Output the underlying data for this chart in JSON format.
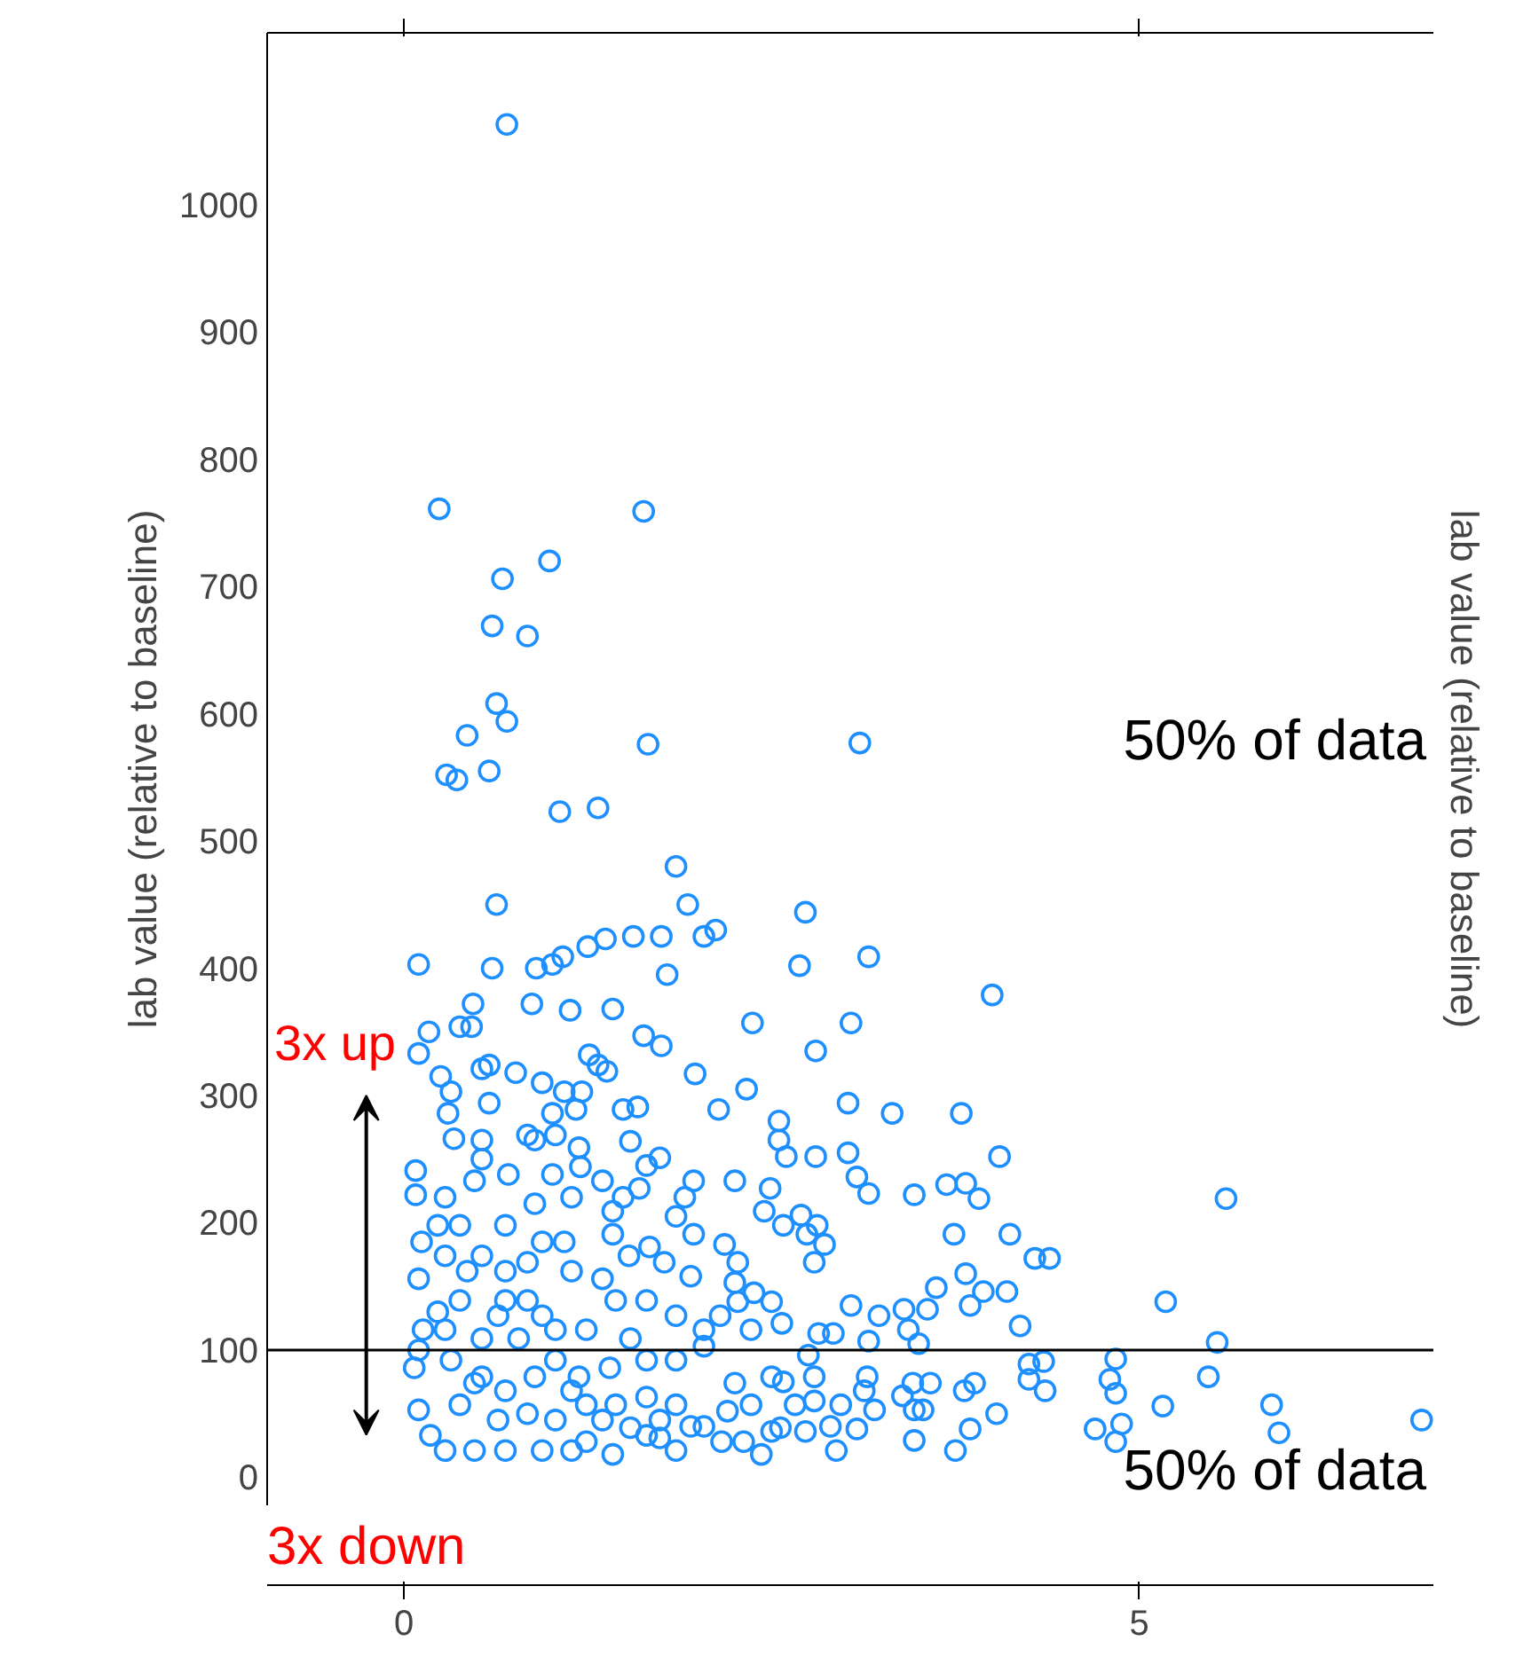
{
  "chart_data": {
    "type": "scatter",
    "ylabel": "lab value (relative to baseline)",
    "y2label": "lab value (relative to baseline)",
    "xlim": [
      -0.93,
      7.0
    ],
    "xticks": [
      0,
      5
    ],
    "ylim": [
      -22,
      1135
    ],
    "yticks": [
      0,
      100,
      200,
      300,
      400,
      500,
      600,
      700,
      800,
      900,
      1000
    ],
    "tick_labels": "xy",
    "grid": false,
    "marker": "circle",
    "ref_lines": [
      {
        "axis": "y",
        "value": 100,
        "color": "#000000"
      }
    ],
    "annotations": [
      "50% of data",
      "50% of data",
      "3x up",
      "3x down"
    ],
    "series": [
      {
        "color": "#1e8fff",
        "x": [
          0.7,
          0.24,
          1.63,
          0.99,
          0.67,
          0.6,
          0.84,
          0.63,
          0.7,
          0.43,
          1.66,
          3.1,
          0.29,
          0.36,
          0.58,
          1.06,
          1.32,
          1.85,
          1.93,
          0.63,
          2.73,
          2.04,
          2.12,
          0.1,
          0.6,
          0.9,
          1.01,
          1.08,
          1.25,
          1.37,
          1.56,
          1.75,
          1.79,
          2.69,
          3.16,
          4.0,
          0.47,
          0.87,
          1.13,
          1.42,
          1.63,
          1.75,
          2.37,
          3.04,
          2.8,
          1.98,
          2.33,
          2.14,
          2.55,
          2.55,
          2.6,
          3.02,
          3.32,
          3.79,
          2.8,
          3.02,
          3.08,
          3.16,
          4.05,
          3.47,
          3.69,
          3.82,
          3.91,
          5.59,
          3.74,
          4.12,
          4.29,
          4.39,
          5.18,
          5.53,
          4.84,
          5.47,
          5.9,
          5.95,
          6.92,
          5.16,
          4.7,
          4.88,
          4.84,
          4.8,
          4.84,
          4.25,
          4.35,
          4.36,
          4.25,
          4.19,
          4.1,
          3.94,
          3.82,
          3.85,
          3.62,
          3.56,
          3.4,
          3.43,
          3.5,
          3.23,
          3.04,
          3.16,
          4.03,
          3.85,
          3.75,
          3.88,
          3.81,
          3.47,
          3.47,
          3.53,
          3.58,
          3.46,
          3.39,
          3.2,
          3.15,
          3.13,
          2.97,
          2.94,
          3.08,
          2.9,
          2.79,
          2.79,
          2.75,
          2.82,
          2.92,
          2.73,
          2.66,
          2.43,
          2.31,
          2.5,
          2.56,
          2.16,
          2.2,
          2.36,
          2.5,
          2.58,
          2.04,
          1.95,
          1.85,
          1.65,
          1.74,
          1.42,
          1.24,
          1.14,
          2.25,
          2.36,
          2.5,
          2.57,
          2.38,
          2.27,
          2.15,
          2.25,
          2.27,
          2.18,
          1.95,
          1.97,
          1.91,
          1.97,
          2.25,
          2.49,
          2.45,
          2.58,
          2.7,
          2.81,
          2.86,
          2.79,
          2.74,
          1.85,
          1.77,
          1.67,
          1.53,
          1.42,
          1.42,
          1.49,
          1.6,
          1.74,
          1.65,
          1.54,
          1.49,
          1.59,
          0.1,
          0.17,
          0.38,
          0.46,
          0.25,
          0.32,
          0.53,
          0.58,
          0.58,
          0.76,
          0.94,
          1.09,
          1.21,
          1.26,
          1.32,
          1.38,
          1.01,
          1.17,
          1.03,
          0.84,
          0.89,
          0.34,
          0.3,
          0.53,
          0.53,
          0.08,
          0.08,
          0.12,
          0.1,
          0.23,
          1.19,
          1.35,
          1.2,
          1.14,
          1.09,
          0.94,
          0.69,
          0.48,
          0.28,
          0.23,
          0.53,
          0.84,
          1.14,
          1.35,
          1.44,
          1.65,
          1.85,
          2.04,
          1.54,
          1.24,
          0.94,
          0.69,
          0.38,
          0.13,
          0.1,
          0.07,
          0.1,
          0.18,
          0.28,
          0.48,
          0.69,
          0.94,
          0.32,
          0.53,
          0.69,
          0.89,
          1.03,
          1.19,
          1.4,
          1.65,
          1.85,
          2.04,
          0.38,
          0.64,
          0.84,
          1.03,
          1.24,
          1.44,
          1.65,
          1.85,
          0.28,
          0.53,
          0.78,
          1.03,
          0.43,
          0.69,
          0.89,
          1.01,
          0.71,
          0.38,
          0.28,
          0.64,
          0.84,
          0.48,
          1.14,
          1.35,
          1.54,
          1.74
        ],
        "values": [
          1063,
          761,
          759,
          720,
          706,
          669,
          661,
          608,
          594,
          583,
          576,
          577,
          552,
          548,
          555,
          523,
          526,
          480,
          450,
          450,
          444,
          425,
          430,
          403,
          400,
          400,
          403,
          409,
          417,
          423,
          425,
          425,
          395,
          402,
          409,
          379,
          372,
          372,
          367,
          368,
          347,
          339,
          357,
          357,
          335,
          317,
          305,
          289,
          280,
          265,
          252,
          294,
          286,
          286,
          252,
          255,
          236,
          223,
          252,
          222,
          230,
          231,
          219,
          219,
          191,
          191,
          172,
          172,
          138,
          106,
          93,
          79,
          57,
          35,
          45,
          56,
          38,
          42,
          28,
          77,
          66,
          89,
          91,
          68,
          77,
          119,
          146,
          146,
          160,
          135,
          149,
          132,
          132,
          116,
          105,
          127,
          135,
          107,
          50,
          38,
          21,
          74,
          68,
          29,
          53,
          53,
          74,
          74,
          64,
          53,
          79,
          68,
          57,
          21,
          38,
          40,
          60,
          79,
          96,
          113,
          113,
          36,
          57,
          18,
          28,
          36,
          39,
          28,
          52,
          57,
          79,
          75,
          40,
          40,
          21,
          33,
          31,
          18,
          28,
          21,
          74,
          116,
          138,
          121,
          145,
          138,
          127,
          153,
          169,
          183,
          158,
          191,
          220,
          233,
          233,
          227,
          209,
          198,
          206,
          198,
          183,
          169,
          191,
          205,
          169,
          181,
          174,
          191,
          209,
          220,
          227,
          251,
          245,
          264,
          289,
          291,
          333,
          350,
          354,
          354,
          315,
          303,
          321,
          324,
          294,
          318,
          310,
          303,
          303,
          332,
          324,
          319,
          286,
          289,
          269,
          269,
          265,
          266,
          286,
          265,
          250,
          241,
          222,
          185,
          156,
          130,
          259,
          233,
          244,
          220,
          185,
          185,
          198,
          233,
          220,
          198,
          174,
          169,
          162,
          156,
          139,
          139,
          127,
          116,
          109,
          116,
          127,
          139,
          139,
          116,
          100,
          86,
          53,
          33,
          21,
          21,
          21,
          21,
          92,
          79,
          68,
          79,
          92,
          79,
          86,
          92,
          92,
          103,
          57,
          45,
          50,
          45,
          57,
          57,
          63,
          57,
          116,
          109,
          109,
          116,
          162,
          162,
          215,
          238,
          238,
          198,
          174,
          127,
          139,
          74,
          68,
          45,
          39,
          45
        ]
      }
    ]
  }
}
